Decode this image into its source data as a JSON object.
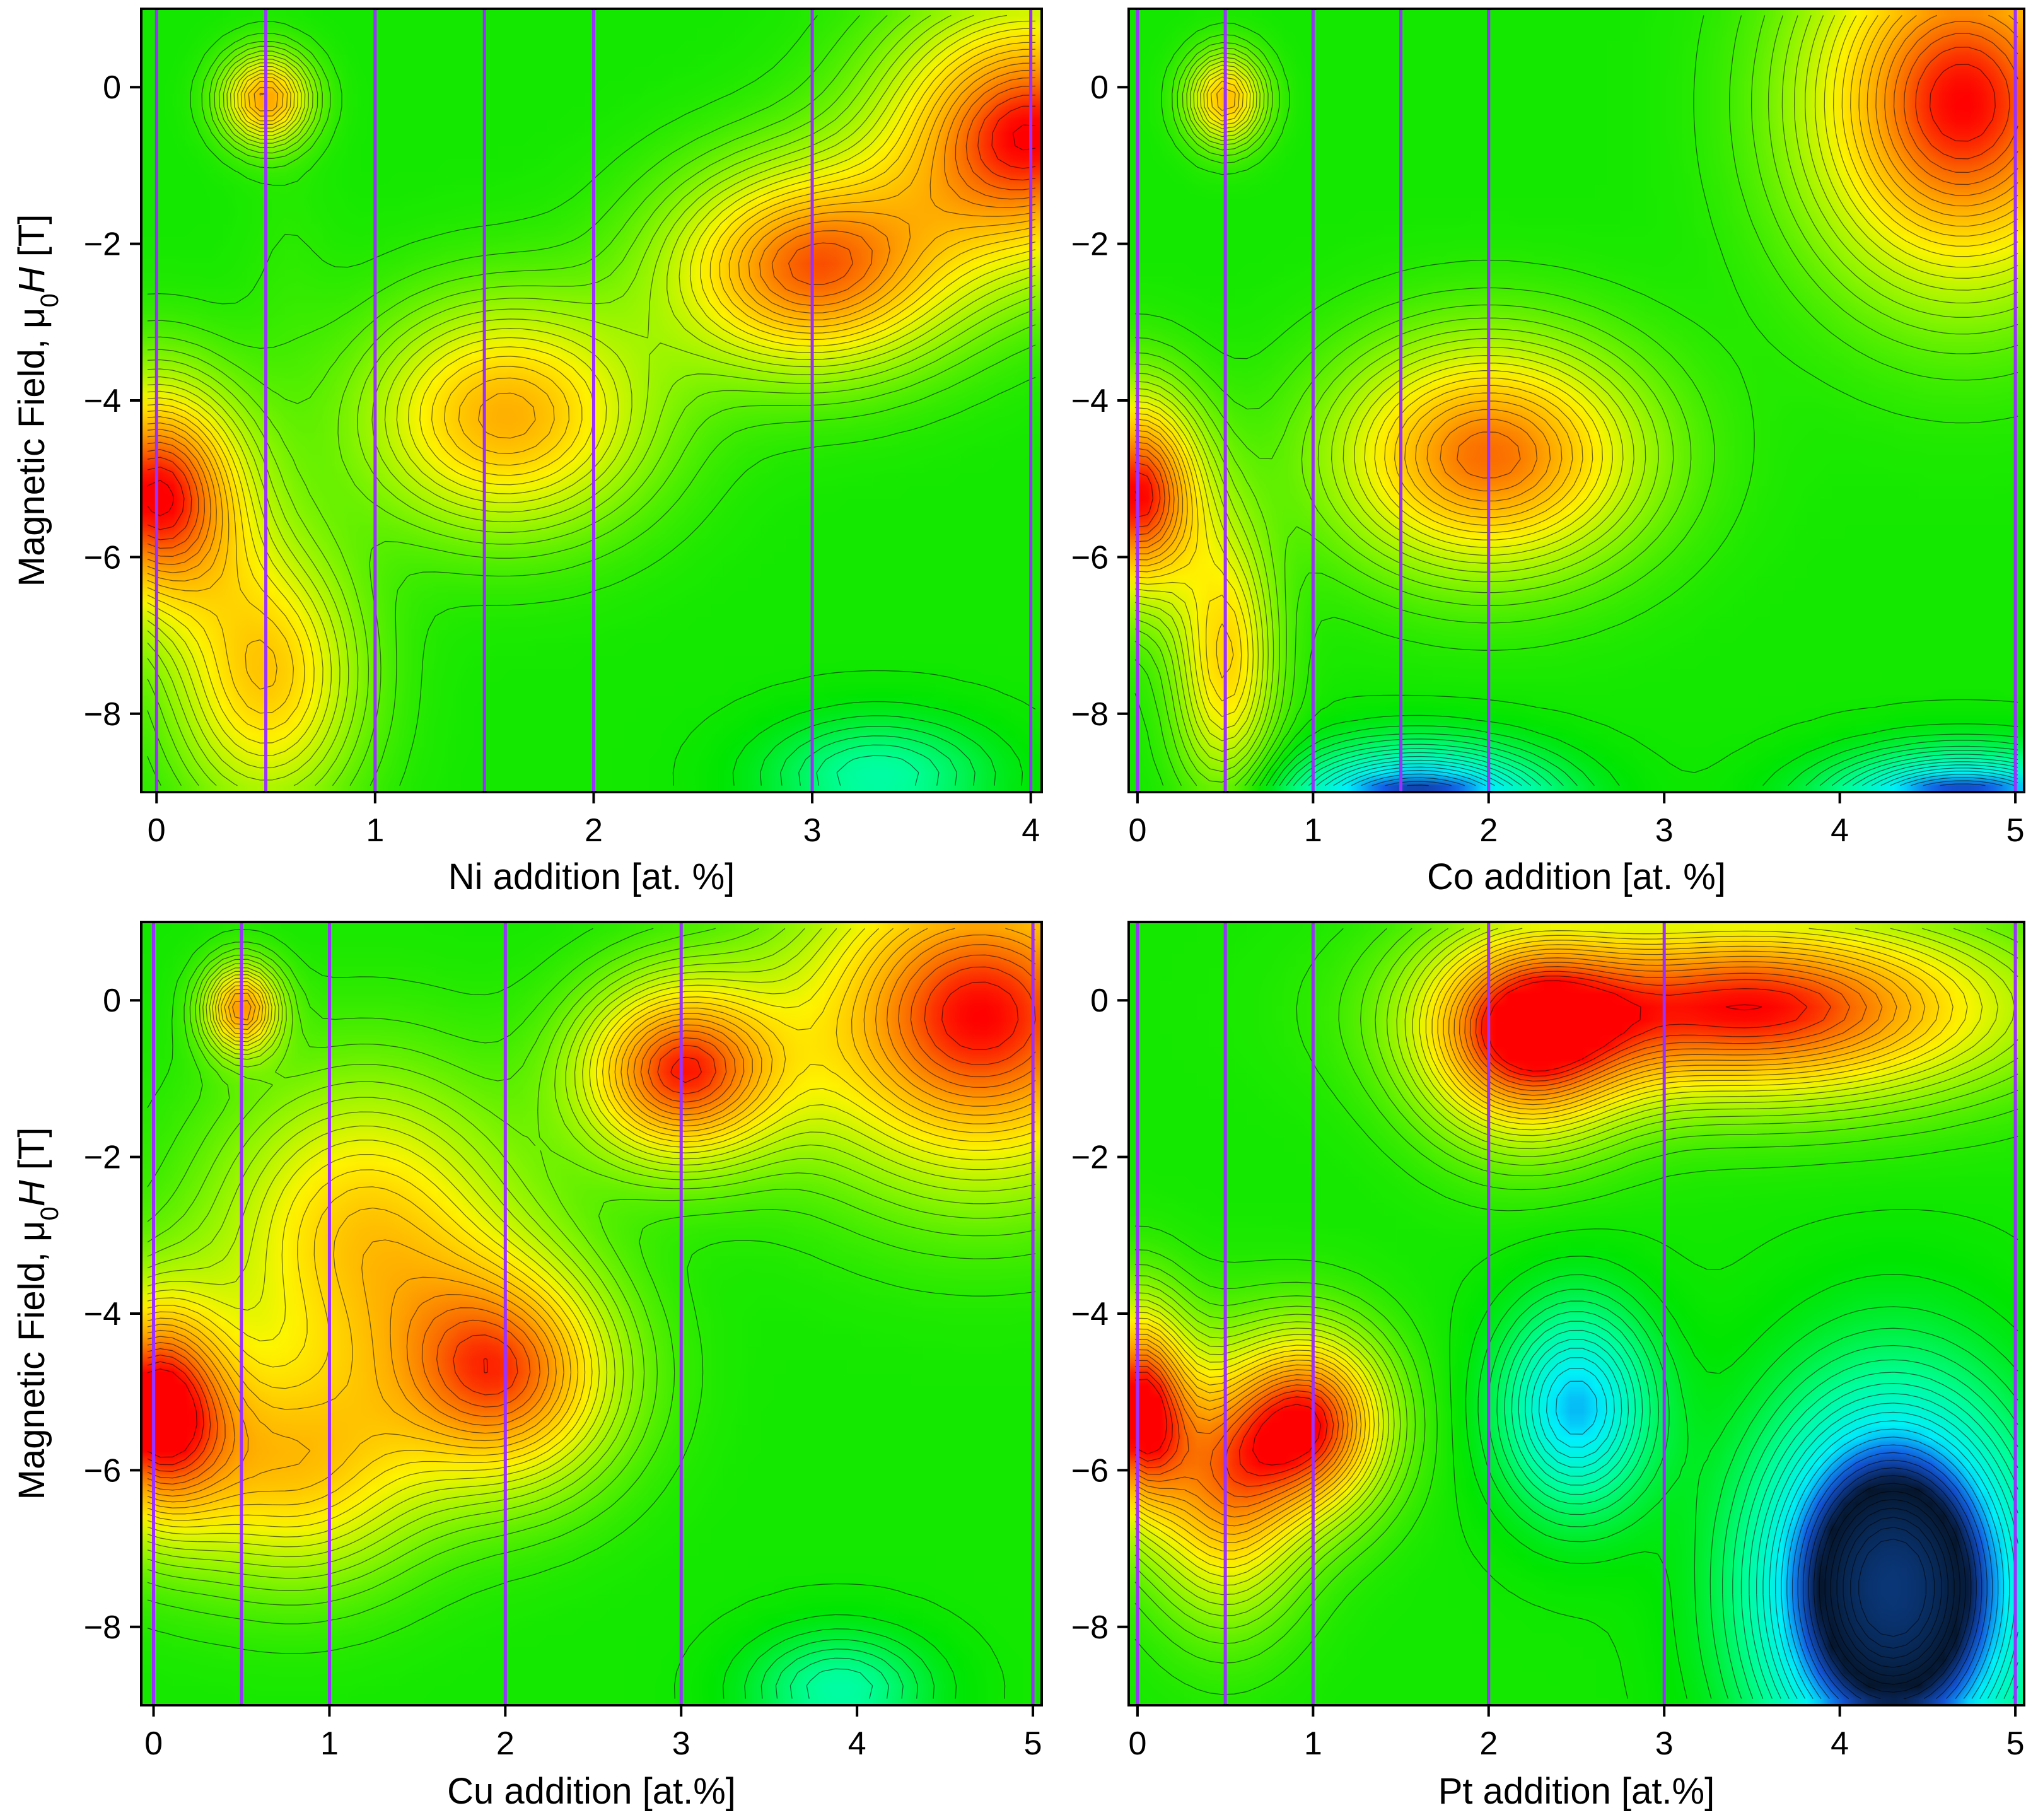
{
  "chart_data": [
    {
      "type": "heatmap",
      "xlabel": "Ni addition [at. %]",
      "ylabel": "Magnetic Field, μ0H [T]",
      "ylabel_parts": {
        "prefix": "Magnetic Field, μ",
        "sub": "0",
        "italic": "H",
        "suffix": " [T]"
      },
      "xlim": [
        -0.07,
        4.05
      ],
      "ylim": [
        -9,
        1
      ],
      "xticks": [
        0,
        1,
        2,
        3,
        4
      ],
      "yticks": [
        0,
        -2,
        -4,
        -6,
        -8
      ],
      "ytick_labels": [
        "0",
        "−2",
        "−4",
        "−6",
        "−8"
      ],
      "measurement_lines_x": [
        0,
        0.5,
        1,
        1.5,
        2,
        3,
        4
      ],
      "level_range": [
        0,
        10
      ],
      "features": [
        {
          "x": 0.0,
          "y": -5.2,
          "level": 10,
          "sx": 0.28,
          "sy": 1.0
        },
        {
          "x": 0.5,
          "y": -0.15,
          "level": 8.6,
          "sx": 0.14,
          "sy": 0.4
        },
        {
          "x": 1.6,
          "y": -4.2,
          "level": 8.4,
          "sx": 0.45,
          "sy": 1.0
        },
        {
          "x": 3.0,
          "y": -2.3,
          "level": 9.3,
          "sx": 0.45,
          "sy": 0.9
        },
        {
          "x": 4.0,
          "y": -0.6,
          "level": 10,
          "sx": 0.45,
          "sy": 1.1
        },
        {
          "x": 0.5,
          "y": -7.5,
          "level": 8.0,
          "sx": 0.3,
          "sy": 1.2
        },
        {
          "x": 0.6,
          "y": -2.5,
          "level": 5.0,
          "sx": 0.15,
          "sy": 1.3
        },
        {
          "x": 3.3,
          "y": -8.8,
          "level": 3.0,
          "sx": 0.35,
          "sy": 0.5
        }
      ]
    },
    {
      "type": "heatmap",
      "xlabel": "Co addition [at. %]",
      "ylabel": "",
      "xlim": [
        -0.05,
        5.05
      ],
      "ylim": [
        -9,
        1
      ],
      "xticks": [
        0,
        1,
        2,
        3,
        4,
        5
      ],
      "yticks": [
        0,
        -2,
        -4,
        -6,
        -8
      ],
      "ytick_labels": [
        "0",
        "−2",
        "−4",
        "−6",
        "−8"
      ],
      "measurement_lines_x": [
        0,
        0.5,
        1,
        1.5,
        2,
        5
      ],
      "level_range": [
        0,
        10
      ],
      "features": [
        {
          "x": 4.7,
          "y": -0.2,
          "level": 10,
          "sx": 0.6,
          "sy": 1.6
        },
        {
          "x": 2.0,
          "y": -4.7,
          "level": 9.2,
          "sx": 0.6,
          "sy": 1.0
        },
        {
          "x": 0.0,
          "y": -5.2,
          "level": 10,
          "sx": 0.25,
          "sy": 0.9
        },
        {
          "x": 0.5,
          "y": -0.15,
          "level": 8.3,
          "sx": 0.15,
          "sy": 0.4
        },
        {
          "x": 0.5,
          "y": -7.3,
          "level": 7.8,
          "sx": 0.2,
          "sy": 1.2
        },
        {
          "x": 1.6,
          "y": -9.2,
          "level": 0.0,
          "sx": 0.5,
          "sy": 0.5
        },
        {
          "x": 4.7,
          "y": -9.2,
          "level": 0.0,
          "sx": 0.5,
          "sy": 0.45
        }
      ]
    },
    {
      "type": "heatmap",
      "xlabel": "Cu addition [at.%]",
      "ylabel": "Magnetic Field, μ0H [T]",
      "ylabel_parts": {
        "prefix": "Magnetic Field, μ",
        "sub": "0",
        "italic": "H",
        "suffix": " [T]"
      },
      "xlim": [
        -0.07,
        5.05
      ],
      "ylim": [
        -9,
        1
      ],
      "xticks": [
        0,
        1,
        2,
        3,
        4,
        5
      ],
      "yticks": [
        0,
        -2,
        -4,
        -6,
        -8
      ],
      "ytick_labels": [
        "0",
        "−2",
        "−4",
        "−6",
        "−8"
      ],
      "measurement_lines_x": [
        0,
        0.5,
        1,
        2,
        3,
        5
      ],
      "level_range": [
        0,
        10
      ],
      "features": [
        {
          "x": 0.0,
          "y": -5.2,
          "level": 10,
          "sx": 0.3,
          "sy": 1.0
        },
        {
          "x": 0.5,
          "y": -0.1,
          "level": 8.6,
          "sx": 0.15,
          "sy": 0.4
        },
        {
          "x": 2.0,
          "y": -4.8,
          "level": 9.0,
          "sx": 0.45,
          "sy": 1.0
        },
        {
          "x": 3.0,
          "y": -0.9,
          "level": 9.6,
          "sx": 0.4,
          "sy": 0.8
        },
        {
          "x": 4.7,
          "y": -0.2,
          "level": 10,
          "sx": 0.7,
          "sy": 1.4
        },
        {
          "x": 1.2,
          "y": -3.0,
          "level": 8.0,
          "sx": 0.6,
          "sy": 1.4
        },
        {
          "x": 0.8,
          "y": -6.0,
          "level": 7.8,
          "sx": 0.5,
          "sy": 1.0
        },
        {
          "x": 3.9,
          "y": -8.8,
          "level": 3.0,
          "sx": 0.35,
          "sy": 0.5
        }
      ]
    },
    {
      "type": "heatmap",
      "xlabel": "Pt addition [at.%]",
      "ylabel": "",
      "xlim": [
        -0.05,
        5.05
      ],
      "ylim": [
        -9,
        1
      ],
      "xticks": [
        0,
        1,
        2,
        3,
        4,
        5
      ],
      "yticks": [
        0,
        -2,
        -4,
        -6,
        -8
      ],
      "ytick_labels": [
        "0",
        "−2",
        "−4",
        "−6",
        "−8"
      ],
      "measurement_lines_x": [
        0,
        0.5,
        1,
        2,
        3,
        5
      ],
      "level_range": [
        0,
        10
      ],
      "features": [
        {
          "x": 3.5,
          "y": -0.1,
          "level": 10,
          "sx": 1.0,
          "sy": 0.8
        },
        {
          "x": 2.2,
          "y": -0.5,
          "level": 9.0,
          "sx": 0.4,
          "sy": 0.9
        },
        {
          "x": 0.0,
          "y": -5.2,
          "level": 10,
          "sx": 0.2,
          "sy": 0.9
        },
        {
          "x": 1.0,
          "y": -5.4,
          "level": 9.5,
          "sx": 0.3,
          "sy": 0.8
        },
        {
          "x": 0.5,
          "y": -6.2,
          "level": 8.5,
          "sx": 0.3,
          "sy": 1.1
        },
        {
          "x": 2.5,
          "y": -5.2,
          "level": 1.5,
          "sx": 0.3,
          "sy": 0.9
        },
        {
          "x": 4.3,
          "y": -7.5,
          "level": -2.0,
          "sx": 0.5,
          "sy": 1.6
        }
      ]
    }
  ]
}
